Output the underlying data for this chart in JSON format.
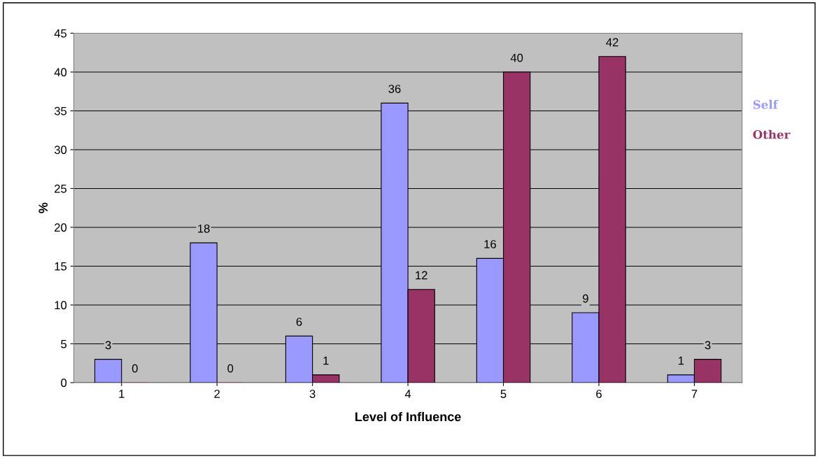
{
  "chart_data": {
    "type": "bar",
    "xlabel": "Level of Influence",
    "ylabel": "%",
    "categories": [
      "1",
      "2",
      "3",
      "4",
      "5",
      "6",
      "7"
    ],
    "series": [
      {
        "name": "Self",
        "color": "#9999ff",
        "values": [
          3,
          18,
          6,
          36,
          16,
          9,
          1
        ]
      },
      {
        "name": "Other",
        "color": "#993366",
        "values": [
          0,
          0,
          1,
          12,
          40,
          42,
          3
        ]
      }
    ],
    "ylim": [
      0,
      45
    ],
    "yticks": [
      0,
      5,
      10,
      15,
      20,
      25,
      30,
      35,
      40,
      45
    ],
    "grid": "y",
    "legend": "right",
    "data_labels": true
  }
}
